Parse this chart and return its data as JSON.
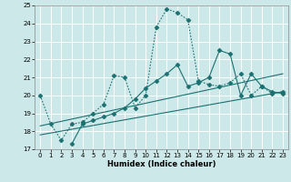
{
  "xlabel": "Humidex (Indice chaleur)",
  "xlim": [
    -0.5,
    23.5
  ],
  "ylim": [
    17,
    25
  ],
  "xticks": [
    0,
    1,
    2,
    3,
    4,
    5,
    6,
    7,
    8,
    9,
    10,
    11,
    12,
    13,
    14,
    15,
    16,
    17,
    18,
    19,
    20,
    21,
    22,
    23
  ],
  "yticks": [
    17,
    18,
    19,
    20,
    21,
    22,
    23,
    24,
    25
  ],
  "bg_color": "#cde8e8",
  "grid_color": "#ffffff",
  "line_color": "#1a7070",
  "lines": [
    {
      "x": [
        0,
        1,
        2,
        3,
        4,
        5,
        6,
        7,
        8,
        9,
        10,
        11,
        12,
        13,
        14,
        15,
        16,
        17,
        18,
        19,
        20,
        21,
        22,
        23
      ],
      "y": [
        20.0,
        18.4,
        17.5,
        18.4,
        18.5,
        19.0,
        19.5,
        21.1,
        21.0,
        19.3,
        20.0,
        23.8,
        24.8,
        24.6,
        24.2,
        20.8,
        20.6,
        20.5,
        20.7,
        21.2,
        20.0,
        20.5,
        20.1,
        20.2
      ],
      "style": "dotted",
      "marker": "D",
      "markersize": 2.5
    },
    {
      "x": [
        3,
        4,
        5,
        6,
        7,
        8,
        9,
        10,
        11,
        12,
        13,
        14,
        15,
        16,
        17,
        18,
        19,
        20,
        21,
        22,
        23
      ],
      "y": [
        17.3,
        18.4,
        18.6,
        18.8,
        19.0,
        19.3,
        19.8,
        20.4,
        20.8,
        21.2,
        21.7,
        20.5,
        20.7,
        21.0,
        22.5,
        22.3,
        20.0,
        21.2,
        20.5,
        20.2,
        20.1
      ],
      "style": "solid",
      "marker": "D",
      "markersize": 2.5
    },
    {
      "x": [
        0,
        23
      ],
      "y": [
        17.8,
        20.2
      ],
      "style": "solid",
      "marker": null,
      "markersize": 0
    },
    {
      "x": [
        0,
        23
      ],
      "y": [
        18.3,
        21.2
      ],
      "style": "solid",
      "marker": null,
      "markersize": 0
    }
  ]
}
